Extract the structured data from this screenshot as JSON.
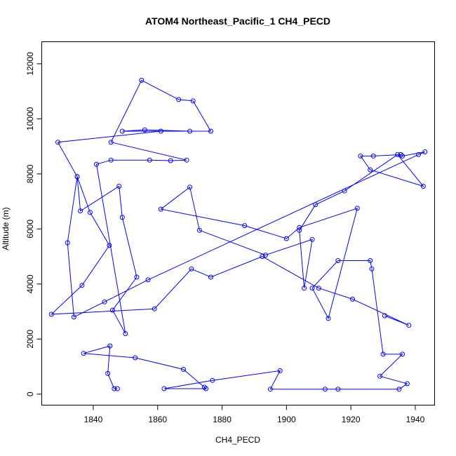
{
  "chart_data": {
    "type": "scatter",
    "title": "ATOM4 Northeast_Pacific_1 CH4_PECD",
    "xlabel": "CH4_PECD",
    "ylabel": "Altitude (m)",
    "xlim": [
      1824,
      1946
    ],
    "ylim": [
      -400,
      12800
    ],
    "xticks": [
      1840,
      1860,
      1880,
      1900,
      1920,
      1940
    ],
    "yticks": [
      0,
      2000,
      4000,
      6000,
      8000,
      10000,
      12000
    ],
    "grid": false,
    "legend": "none",
    "color": "#0000ff",
    "series": [
      {
        "x": [
          1847.5,
          1846.5,
          1844.5,
          1845.2,
          1837,
          1853,
          1868,
          1874.5,
          1875,
          1862,
          1877,
          1898,
          1895,
          1912,
          1916,
          1935,
          1937.5,
          1929,
          1936,
          1930,
          1926.5,
          1926,
          1916,
          1908,
          1913,
          1922,
          1904,
          1900,
          1887,
          1861,
          1870,
          1873,
          1893.5,
          1908,
          1905.5,
          1904,
          1909,
          1918,
          1934.5,
          1942.5,
          1926,
          1923,
          1927,
          1935.5,
          1936,
          1943,
          1941,
          1857,
          1843.5,
          1834,
          1832,
          1835,
          1836,
          1848,
          1849,
          1853.5,
          1846,
          1850,
          1841,
          1845.5,
          1857.5,
          1864,
          1869,
          1845.5,
          1855,
          1866.5,
          1871,
          1876.5,
          1849,
          1856,
          1870,
          1861,
          1829,
          1835,
          1839,
          1845,
          1836.5,
          1827,
          1859,
          1870.5,
          1876.5,
          1892.5,
          1910,
          1920.5,
          1938,
          1930.5
        ],
        "y": [
          200,
          200,
          750,
          1750,
          1480,
          1320,
          900,
          250,
          200,
          200,
          500,
          850,
          180,
          180,
          180,
          180,
          380,
          650,
          1450,
          1450,
          4550,
          4850,
          4850,
          3850,
          2750,
          6750,
          6050,
          5650,
          6120,
          6720,
          7520,
          5950,
          5050,
          5620,
          3850,
          5950,
          6880,
          7380,
          8700,
          7550,
          8150,
          8650,
          8650,
          8700,
          8650,
          8800,
          8700,
          4150,
          3350,
          2800,
          5500,
          7900,
          6650,
          7550,
          6420,
          4250,
          3050,
          2200,
          8350,
          8500,
          8500,
          8480,
          8500,
          9150,
          11400,
          10700,
          10650,
          9550,
          9550,
          9600,
          9550,
          9550,
          9150,
          7900,
          6600,
          5400,
          3950,
          2900,
          3100,
          4550,
          4250,
          5000,
          3850,
          3450,
          2500,
          2850
        ]
      }
    ]
  }
}
